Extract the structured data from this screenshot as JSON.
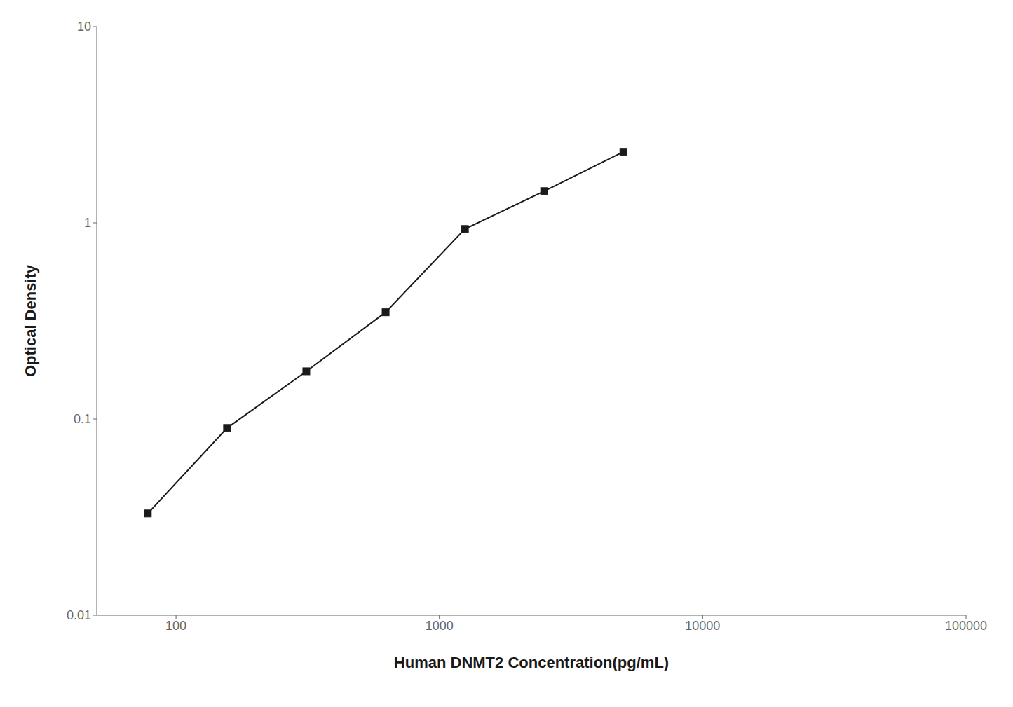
{
  "chart_data": {
    "type": "line",
    "x": [
      78.125,
      156.25,
      312.5,
      625,
      1250,
      2500,
      5000
    ],
    "values": [
      0.033,
      0.09,
      0.175,
      0.35,
      0.93,
      1.45,
      2.3
    ],
    "xlabel": "Human DNMT2 Concentration(pg/mL)",
    "ylabel": "Optical Density",
    "xlim": [
      50,
      100000
    ],
    "ylim": [
      0.01,
      10
    ],
    "xticks": [
      100,
      1000,
      10000,
      100000
    ],
    "yticks": [
      0.01,
      0.1,
      1,
      10
    ],
    "log": true,
    "grid": false,
    "color": "#1a1a1a",
    "marker": "square"
  }
}
